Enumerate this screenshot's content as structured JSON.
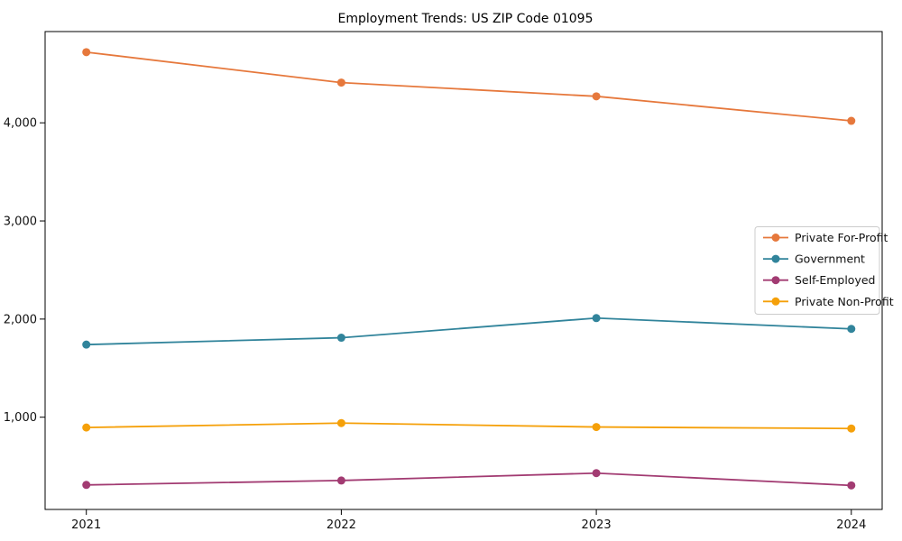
{
  "figure": {
    "background": "#ffffff",
    "text_color": "#111111",
    "spine_color": "#000000",
    "legend_border_color": "#cccccc"
  },
  "chart_data": {
    "type": "line",
    "title": "Employment Trends: US ZIP Code 01095",
    "x": [
      "2021",
      "2022",
      "2023",
      "2024"
    ],
    "series": [
      {
        "name": "Private For-Profit",
        "color": "#E6783C",
        "values": [
          4720,
          4410,
          4270,
          4020
        ]
      },
      {
        "name": "Government",
        "color": "#31849B",
        "values": [
          1740,
          1810,
          2010,
          1900
        ]
      },
      {
        "name": "Self-Employed",
        "color": "#A23B72",
        "values": [
          310,
          355,
          430,
          305
        ]
      },
      {
        "name": "Private Non-Profit",
        "color": "#F5A009",
        "values": [
          895,
          940,
          900,
          885
        ]
      }
    ],
    "xlabel": "",
    "ylabel": "",
    "xtick_labels": [
      "2021",
      "2022",
      "2023",
      "2024"
    ],
    "yticks": [
      1000,
      2000,
      3000,
      4000
    ],
    "ytick_labels": [
      "1,000",
      "2,000",
      "3,000",
      "4,000"
    ],
    "ylim": [
      60,
      4930
    ],
    "grid": false,
    "marker": "circle",
    "legend_position": "center-right"
  }
}
